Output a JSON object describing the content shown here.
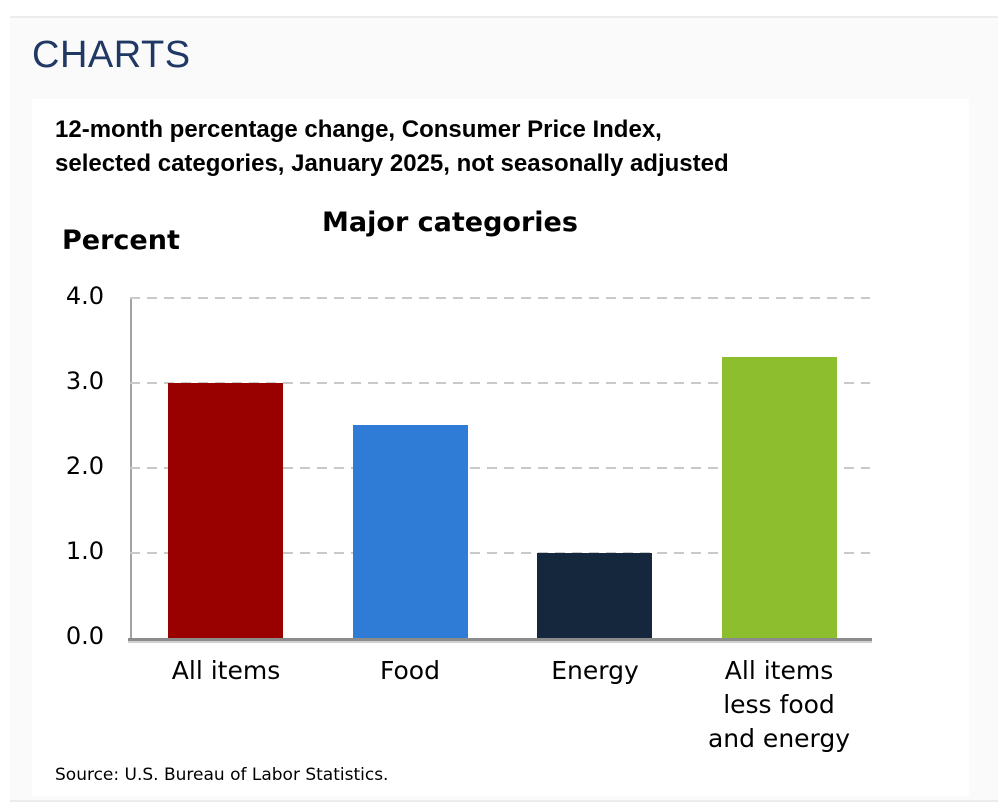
{
  "page": {
    "heading": "CHARTS",
    "source": "Source: U.S. Bureau of Labor Statistics."
  },
  "chart": {
    "title_lines": [
      "12-month percentage change, Consumer Price Index,",
      "selected categories, January 2025, not seasonally adjusted"
    ]
  },
  "chart_data": {
    "type": "bar",
    "title": "Major categories",
    "xlabel": "",
    "ylabel": "Percent",
    "categories": [
      "All items",
      "Food",
      "Energy",
      "All items less food and energy"
    ],
    "category_display_lines": [
      [
        "All items"
      ],
      [
        "Food"
      ],
      [
        "Energy"
      ],
      [
        "All items",
        "less food",
        "and energy"
      ]
    ],
    "values": [
      3.0,
      2.5,
      1.0,
      3.3
    ],
    "bar_colors": [
      "#990000",
      "#2f7cd6",
      "#14273d",
      "#8cbe2d"
    ],
    "ylim": [
      0,
      4
    ],
    "ytick_labels": [
      "0.0",
      "1.0",
      "2.0",
      "3.0",
      "4.0"
    ],
    "grid": "horizontal-dashed",
    "legend": "none"
  },
  "colors": {
    "heading_navy": "#1f3864",
    "panel_bg": "#fafafa",
    "card_bg": "#ffffff",
    "gridline": "#c9c9c9",
    "axis": "#8c8c8c"
  }
}
